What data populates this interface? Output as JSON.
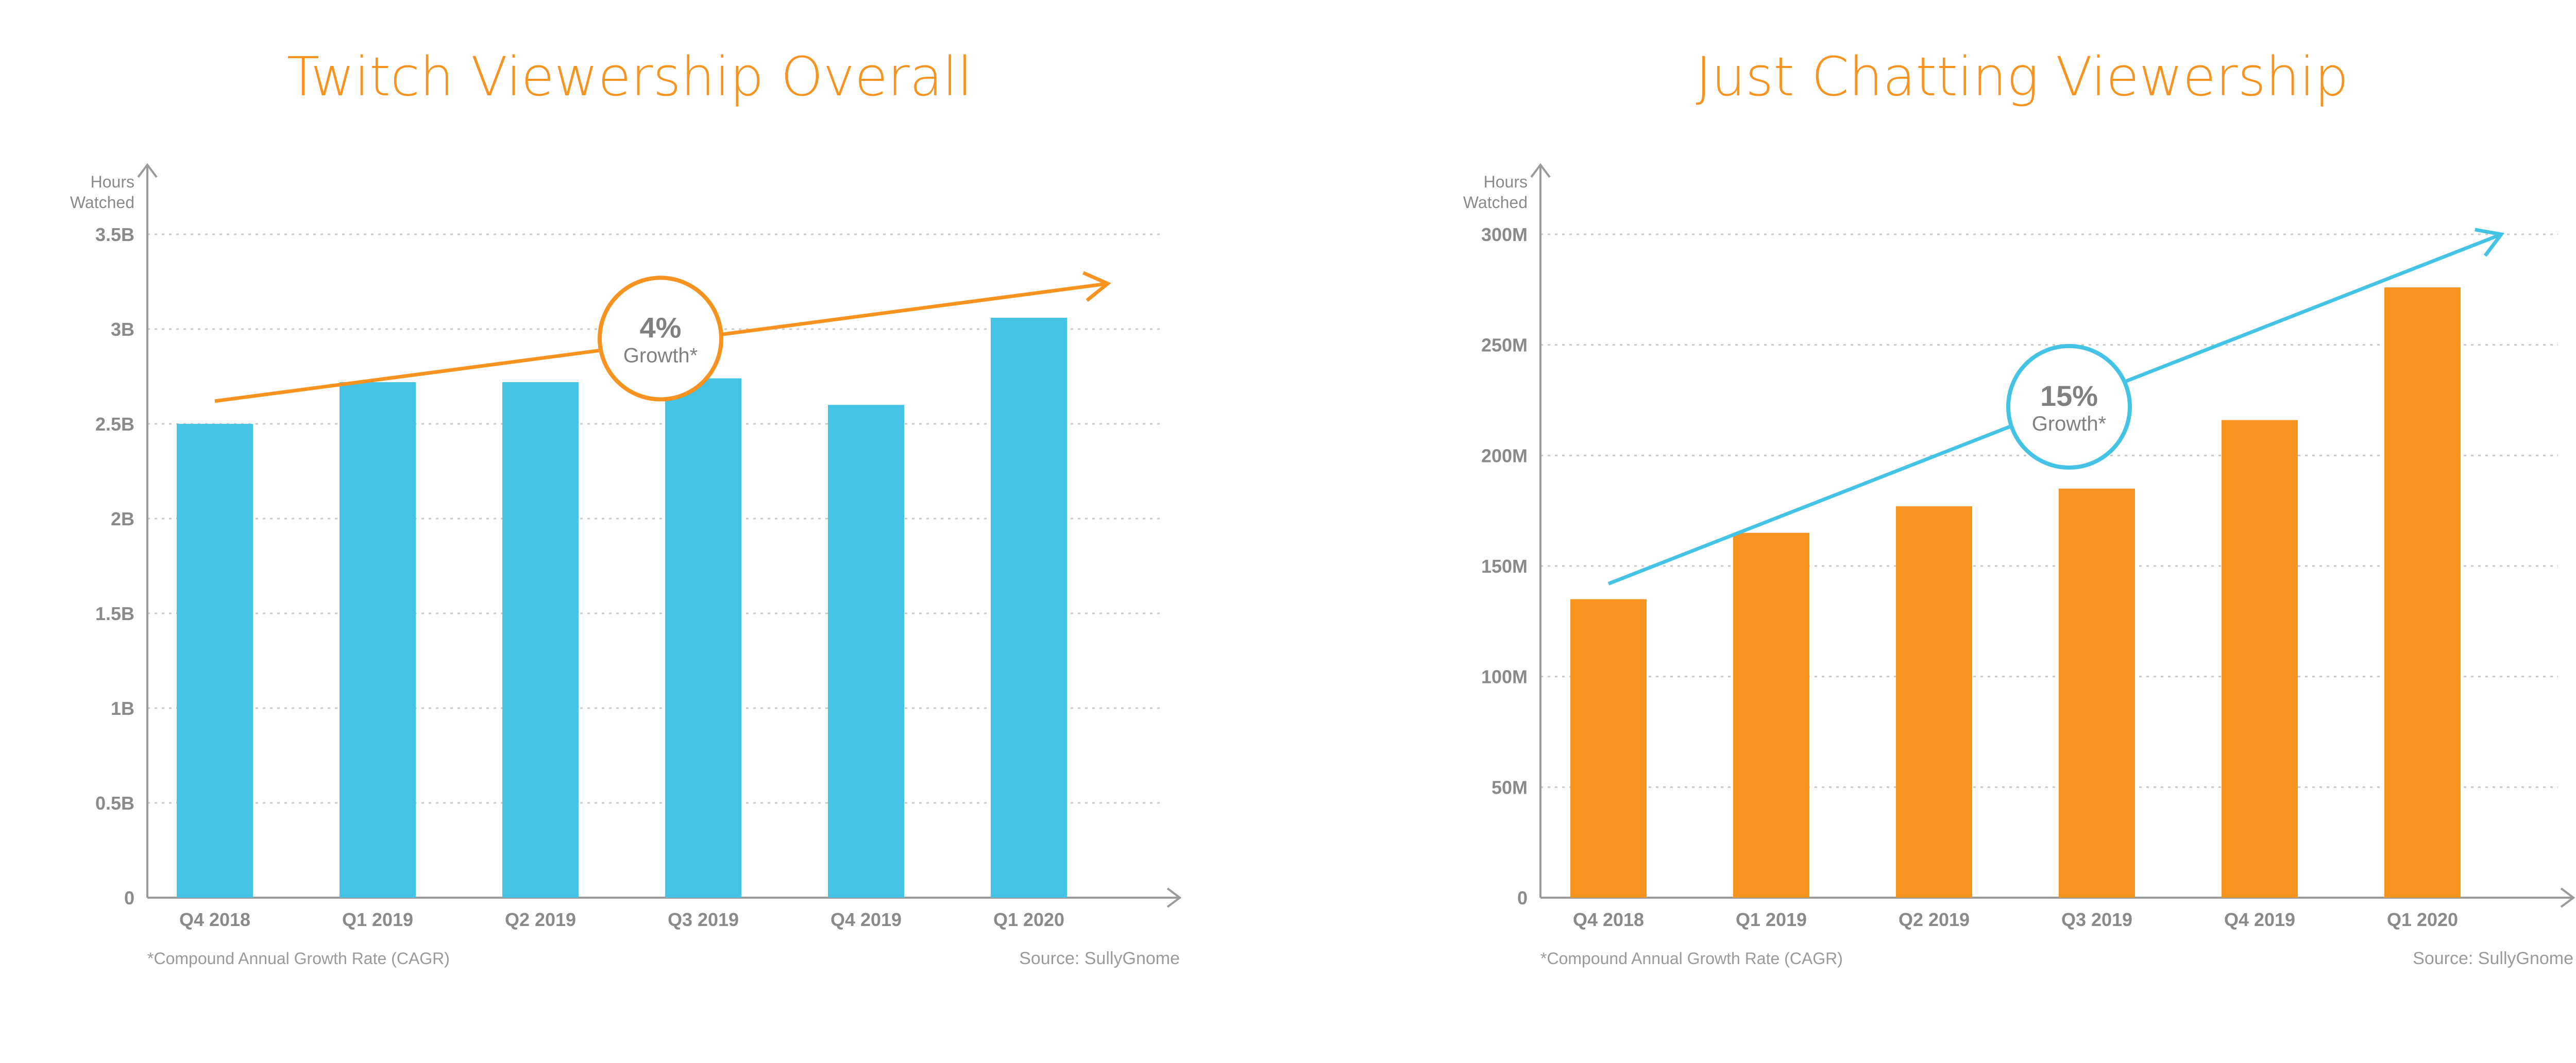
{
  "colors": {
    "blue": "#45c3e5",
    "orange": "#f7931e",
    "axis": "#9b9b9b",
    "grid": "#c8c8c8",
    "tick_text": "#8a8a8a",
    "note_text": "#9a9a9a",
    "badge_text": "#808080"
  },
  "chart_data": [
    {
      "type": "bar",
      "title": "Twitch Viewership Overall",
      "ylabel_line1": "Hours",
      "ylabel_line2": "Watched",
      "categories": [
        "Q4 2018",
        "Q1 2019",
        "Q2 2019",
        "Q3 2019",
        "Q4 2019",
        "Q1 2020"
      ],
      "series": [
        {
          "values": [
            2.5,
            2.72,
            2.72,
            2.74,
            2.6,
            3.06
          ]
        }
      ],
      "yticks": [
        0,
        0.5,
        1,
        1.5,
        2,
        2.5,
        3,
        3.5
      ],
      "ytick_labels": [
        "0",
        "0.5B",
        "1B",
        "1.5B",
        "2B",
        "2.5B",
        "3B",
        "3.5B"
      ],
      "ylim": [
        0,
        3.5
      ],
      "grid": true,
      "bar_color": "#45c3e5",
      "trend": {
        "color": "#f7931e",
        "start": 2.62,
        "end": 3.24
      },
      "badge": {
        "value": "4%",
        "label": "Growth*",
        "color": "#f7931e",
        "level": 2.95
      },
      "footnote": "*Compound Annual Growth Rate (CAGR)",
      "source": "Source: SullyGnome"
    },
    {
      "type": "bar",
      "title": "Just Chatting Viewership",
      "ylabel_line1": "Hours",
      "ylabel_line2": "Watched",
      "categories": [
        "Q4 2018",
        "Q1 2019",
        "Q2 2019",
        "Q3 2019",
        "Q4 2019",
        "Q1 2020"
      ],
      "series": [
        {
          "values": [
            135,
            165,
            177,
            185,
            216,
            276
          ]
        }
      ],
      "yticks": [
        0,
        50,
        100,
        150,
        200,
        250,
        300
      ],
      "ytick_labels": [
        "0",
        "50M",
        "100M",
        "150M",
        "200M",
        "250M",
        "300M"
      ],
      "ylim": [
        0,
        300
      ],
      "grid": true,
      "bar_color": "#f7931e",
      "trend": {
        "color": "#45c3e5",
        "start": 142,
        "end": 300
      },
      "badge": {
        "value": "15%",
        "label": "Growth*",
        "color": "#45c3e5",
        "level": 222
      },
      "footnote": "*Compound Annual Growth Rate (CAGR)",
      "source": "Source: SullyGnome"
    }
  ]
}
